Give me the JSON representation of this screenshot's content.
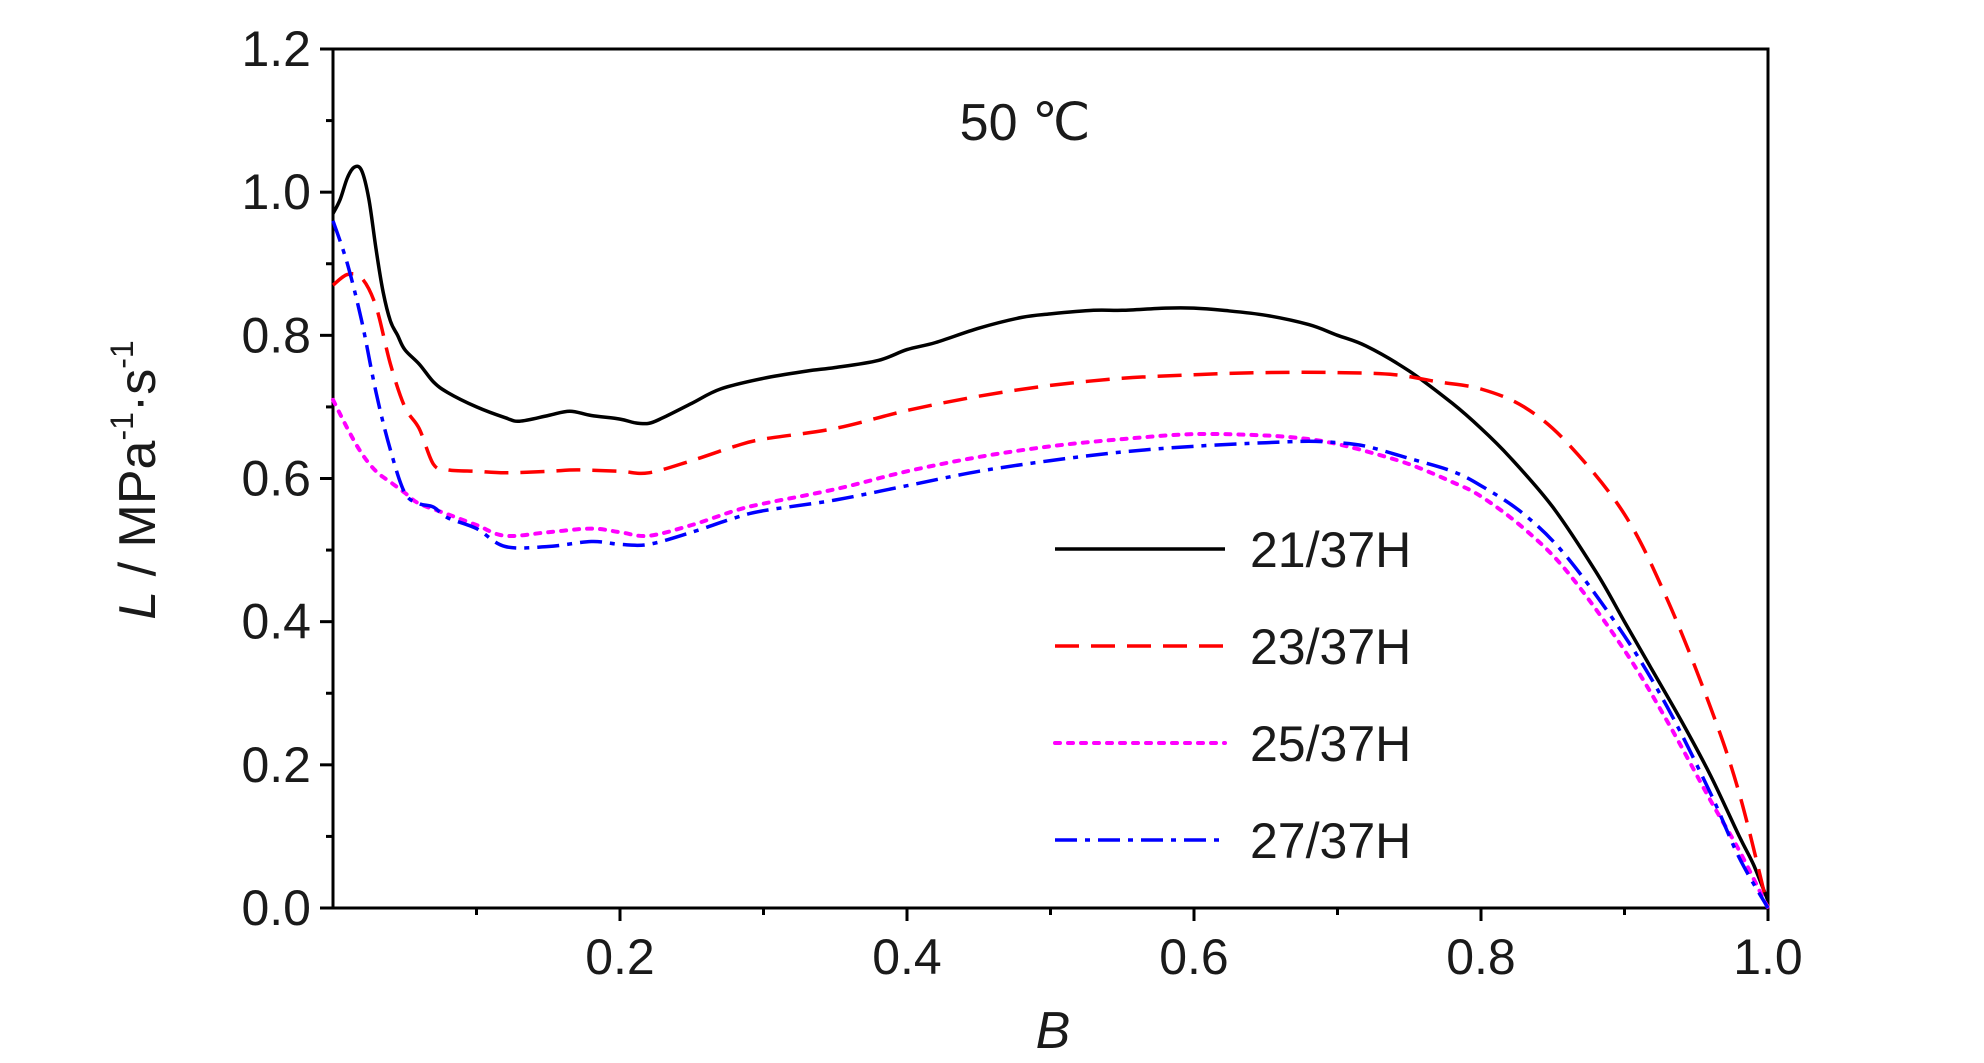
{
  "chart_data": {
    "type": "line",
    "annotation": "50 ℃",
    "xlabel": "B",
    "ylabel": {
      "italic": "L",
      "sep": " / ",
      "unit": "MPa",
      "sup1": "-1",
      "dot": "·s",
      "sup2": "-1"
    },
    "xlim": [
      0.0,
      1.0
    ],
    "ylim": [
      0.0,
      1.2
    ],
    "xticks": [
      0.2,
      0.4,
      0.6,
      0.8,
      1.0
    ],
    "xtick_labels": [
      "0.2",
      "0.4",
      "0.6",
      "0.8",
      "1.0"
    ],
    "yticks": [
      0.0,
      0.2,
      0.4,
      0.6,
      0.8,
      1.0,
      1.2
    ],
    "ytick_labels": [
      "0.0",
      "0.2",
      "0.4",
      "0.6",
      "0.8",
      "1.0",
      "1.2"
    ],
    "grid": false,
    "legend_position": "lower-right",
    "series": [
      {
        "name": "21/37H",
        "color": "#000000",
        "dash": "solid",
        "x": [
          0.0,
          0.005,
          0.01,
          0.015,
          0.02,
          0.025,
          0.03,
          0.035,
          0.04,
          0.045,
          0.05,
          0.06,
          0.07,
          0.08,
          0.1,
          0.12,
          0.13,
          0.15,
          0.165,
          0.18,
          0.2,
          0.21,
          0.22,
          0.23,
          0.25,
          0.27,
          0.3,
          0.33,
          0.35,
          0.38,
          0.4,
          0.42,
          0.45,
          0.48,
          0.5,
          0.53,
          0.55,
          0.58,
          0.6,
          0.62,
          0.65,
          0.68,
          0.7,
          0.72,
          0.75,
          0.78,
          0.8,
          0.82,
          0.85,
          0.88,
          0.9,
          0.92,
          0.94,
          0.96,
          0.98,
          0.99,
          1.0
        ],
        "y": [
          0.97,
          0.99,
          1.02,
          1.035,
          1.03,
          0.99,
          0.92,
          0.86,
          0.82,
          0.8,
          0.78,
          0.76,
          0.735,
          0.72,
          0.7,
          0.685,
          0.68,
          0.688,
          0.694,
          0.688,
          0.683,
          0.678,
          0.677,
          0.685,
          0.705,
          0.725,
          0.74,
          0.75,
          0.755,
          0.765,
          0.78,
          0.79,
          0.81,
          0.825,
          0.83,
          0.835,
          0.835,
          0.838,
          0.838,
          0.835,
          0.828,
          0.815,
          0.8,
          0.785,
          0.75,
          0.705,
          0.67,
          0.63,
          0.56,
          0.47,
          0.4,
          0.33,
          0.26,
          0.185,
          0.1,
          0.06,
          0.01
        ]
      },
      {
        "name": "23/37H",
        "color": "#ff0000",
        "dash": "24,12",
        "x": [
          0.0,
          0.01,
          0.02,
          0.03,
          0.04,
          0.05,
          0.06,
          0.07,
          0.08,
          0.1,
          0.12,
          0.15,
          0.17,
          0.2,
          0.22,
          0.25,
          0.28,
          0.3,
          0.35,
          0.4,
          0.45,
          0.5,
          0.55,
          0.6,
          0.65,
          0.7,
          0.74,
          0.77,
          0.8,
          0.83,
          0.86,
          0.9,
          0.93,
          0.96,
          0.98,
          1.0
        ],
        "y": [
          0.87,
          0.885,
          0.88,
          0.84,
          0.76,
          0.7,
          0.67,
          0.62,
          0.612,
          0.61,
          0.608,
          0.61,
          0.612,
          0.61,
          0.608,
          0.625,
          0.645,
          0.655,
          0.67,
          0.695,
          0.715,
          0.73,
          0.74,
          0.745,
          0.748,
          0.748,
          0.745,
          0.735,
          0.725,
          0.7,
          0.65,
          0.55,
          0.43,
          0.28,
          0.16,
          0.0
        ]
      },
      {
        "name": "25/37H",
        "color": "#ff00ff",
        "dash": "5,8",
        "x": [
          0.0,
          0.01,
          0.02,
          0.03,
          0.04,
          0.05,
          0.06,
          0.08,
          0.1,
          0.12,
          0.15,
          0.18,
          0.2,
          0.22,
          0.25,
          0.28,
          0.3,
          0.35,
          0.4,
          0.45,
          0.5,
          0.55,
          0.6,
          0.65,
          0.68,
          0.7,
          0.72,
          0.75,
          0.78,
          0.8,
          0.83,
          0.86,
          0.9,
          0.93,
          0.96,
          0.98,
          1.0
        ],
        "y": [
          0.71,
          0.67,
          0.635,
          0.61,
          0.595,
          0.58,
          0.565,
          0.55,
          0.535,
          0.52,
          0.525,
          0.53,
          0.525,
          0.52,
          0.535,
          0.555,
          0.565,
          0.585,
          0.61,
          0.63,
          0.645,
          0.655,
          0.662,
          0.66,
          0.655,
          0.648,
          0.638,
          0.62,
          0.595,
          0.575,
          0.53,
          0.47,
          0.36,
          0.26,
          0.15,
          0.08,
          0.0
        ]
      },
      {
        "name": "27/37H",
        "color": "#0000ff",
        "dash": "22,8,5,8",
        "x": [
          0.0,
          0.01,
          0.02,
          0.03,
          0.04,
          0.05,
          0.06,
          0.07,
          0.08,
          0.1,
          0.12,
          0.15,
          0.18,
          0.2,
          0.22,
          0.25,
          0.28,
          0.3,
          0.35,
          0.4,
          0.45,
          0.5,
          0.55,
          0.6,
          0.65,
          0.68,
          0.7,
          0.72,
          0.75,
          0.78,
          0.8,
          0.83,
          0.86,
          0.9,
          0.93,
          0.96,
          0.98,
          1.0
        ],
        "y": [
          0.96,
          0.9,
          0.82,
          0.72,
          0.64,
          0.58,
          0.565,
          0.56,
          0.545,
          0.53,
          0.505,
          0.505,
          0.512,
          0.508,
          0.508,
          0.525,
          0.545,
          0.555,
          0.57,
          0.59,
          0.61,
          0.625,
          0.637,
          0.645,
          0.65,
          0.652,
          0.65,
          0.645,
          0.628,
          0.61,
          0.59,
          0.55,
          0.49,
          0.38,
          0.28,
          0.16,
          0.07,
          0.0
        ]
      }
    ]
  }
}
